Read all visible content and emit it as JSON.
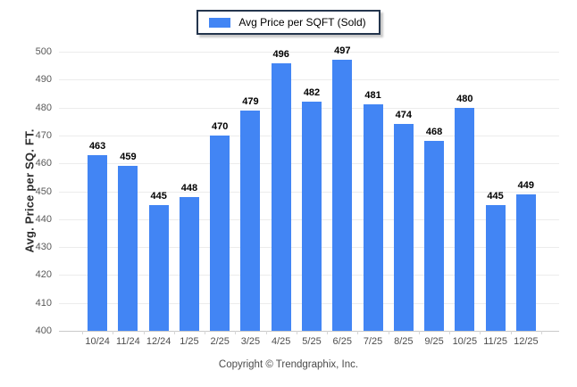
{
  "legend": {
    "label": "Avg Price per SQFT (Sold)",
    "swatch_color": "#4285f4"
  },
  "y_axis": {
    "title": "Avg. Price per SQ. FT."
  },
  "footer": {
    "copyright": "Copyright © Trendgraphix, Inc."
  },
  "colors": {
    "bar": "#4285f4",
    "gridline": "#ececec",
    "axis_line": "#c9c9c9"
  },
  "chart_data": {
    "type": "bar",
    "title": "",
    "categories": [
      "10/24",
      "11/24",
      "12/24",
      "1/25",
      "2/25",
      "3/25",
      "4/25",
      "5/25",
      "6/25",
      "7/25",
      "8/25",
      "9/25",
      "10/25",
      "11/25",
      "12/25"
    ],
    "values": [
      463,
      459,
      445,
      448,
      470,
      479,
      496,
      482,
      497,
      481,
      474,
      468,
      480,
      445,
      449
    ],
    "series_name": "Avg Price per SQFT (Sold)",
    "xlabel": "",
    "ylabel": "Avg. Price per SQ. FT.",
    "ylim": [
      400,
      500
    ],
    "ytick_step": 10,
    "grid": "horizontal",
    "legend_position": "top-center",
    "bar_color": "#4285f4",
    "value_labels": true
  }
}
